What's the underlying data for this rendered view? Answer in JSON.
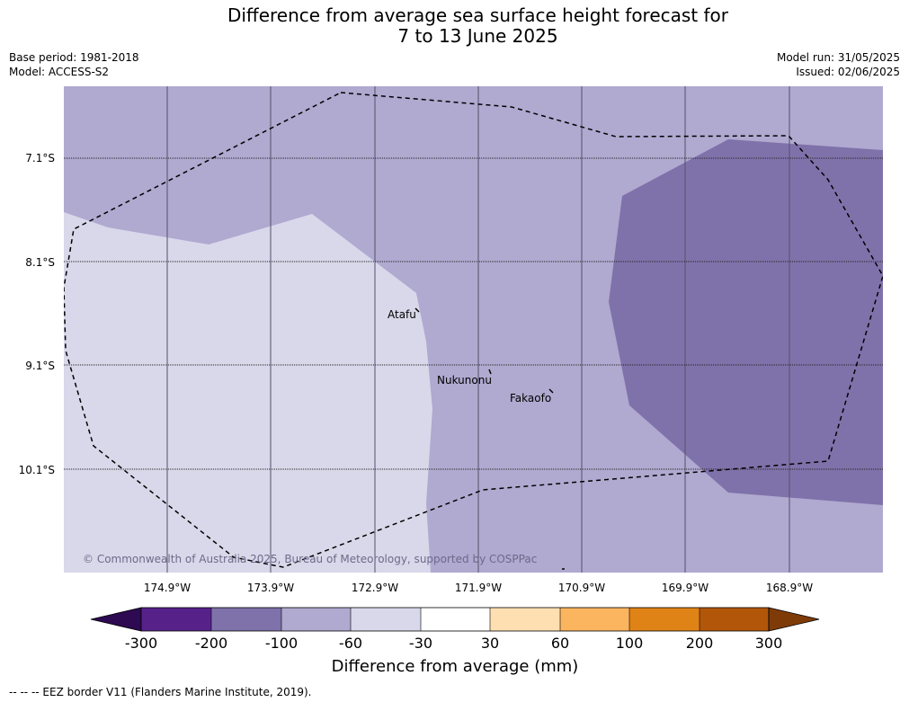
{
  "title": {
    "line1": "Difference from average sea surface height forecast for",
    "line2": "7 to 13 June 2025"
  },
  "meta_left": {
    "base_period": "Base period: 1981-2018",
    "model": "Model: ACCESS-S2"
  },
  "meta_right": {
    "model_run": "Model run: 31/05/2025",
    "issued": "Issued: 02/06/2025"
  },
  "map": {
    "lat_labels": [
      "7.1°S",
      "8.1°S",
      "9.1°S",
      "10.1°S"
    ],
    "lon_labels": [
      "174.9°W",
      "173.9°W",
      "172.9°W",
      "171.9°W",
      "170.9°W",
      "169.9°W",
      "168.9°W"
    ],
    "places": [
      "Atafu",
      "Nukunonu",
      "Fakaofo"
    ],
    "copyright": "© Commonwealth of Australia 2025, Bureau of Meteorology, supported by COSPPac",
    "colors": {
      "band_minus_60_to_minus_30": "#d8d8ea",
      "band_minus_100_to_minus_60": "#b0a9d0",
      "band_minus_200_to_minus_100": "#7f72aa"
    }
  },
  "colorbar": {
    "ticks": [
      "-300",
      "-200",
      "-100",
      "-60",
      "-30",
      "30",
      "60",
      "100",
      "200",
      "300"
    ],
    "colors": [
      "#2d0a51",
      "#56228a",
      "#7f72aa",
      "#b0a9d0",
      "#d8d8ea",
      "#ffffff",
      "#fedfb2",
      "#fbb55f",
      "#e08316",
      "#b25709",
      "#7f3b07"
    ],
    "label": "Difference from average (mm)"
  },
  "footer": "--  --  -- EEZ border V11 (Flanders Marine Institute, 2019)."
}
